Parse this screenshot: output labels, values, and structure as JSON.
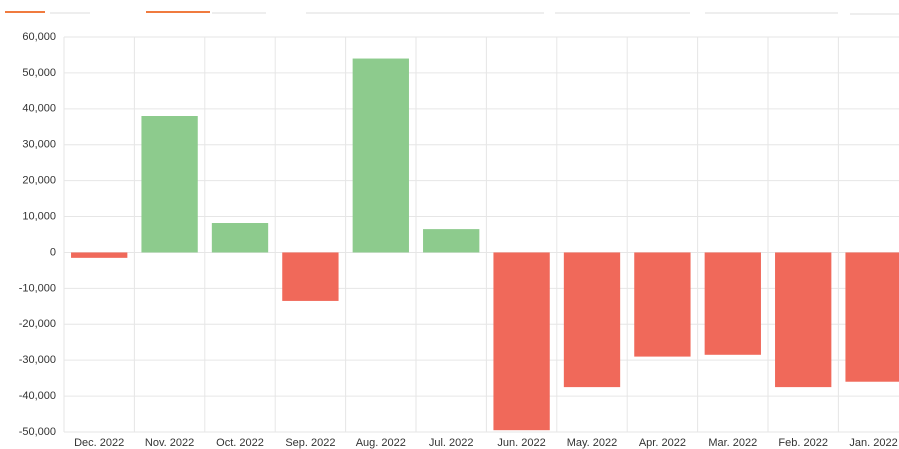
{
  "chart_data": {
    "type": "bar",
    "categories": [
      "Dec. 2022",
      "Nov. 2022",
      "Oct. 2022",
      "Sep. 2022",
      "Aug. 2022",
      "Jul. 2022",
      "Jun. 2022",
      "May. 2022",
      "Apr. 2022",
      "Mar. 2022",
      "Feb. 2022",
      "Jan. 2022"
    ],
    "values": [
      -1500,
      38000,
      8200,
      -13500,
      54000,
      6500,
      -49500,
      -37500,
      -29000,
      -28500,
      -37500,
      -36000
    ],
    "positive_color": "#8dcb8d",
    "negative_color": "#f0695a",
    "ylim": [
      -50000,
      60000
    ],
    "yticks": [
      {
        "value": -50000,
        "label": "-50,000"
      },
      {
        "value": -40000,
        "label": "-40,000"
      },
      {
        "value": -30000,
        "label": "-30,000"
      },
      {
        "value": -20000,
        "label": "-20,000"
      },
      {
        "value": -10000,
        "label": "-10,000"
      },
      0,
      {
        "value": 10000,
        "label": "10,000"
      },
      {
        "value": 20000,
        "label": "20,000"
      },
      {
        "value": 30000,
        "label": "30,000"
      },
      {
        "value": 40000,
        "label": "40,000"
      },
      {
        "value": 50000,
        "label": "50,000"
      },
      {
        "value": 60000,
        "label": "60,000"
      }
    ],
    "grid": true
  }
}
